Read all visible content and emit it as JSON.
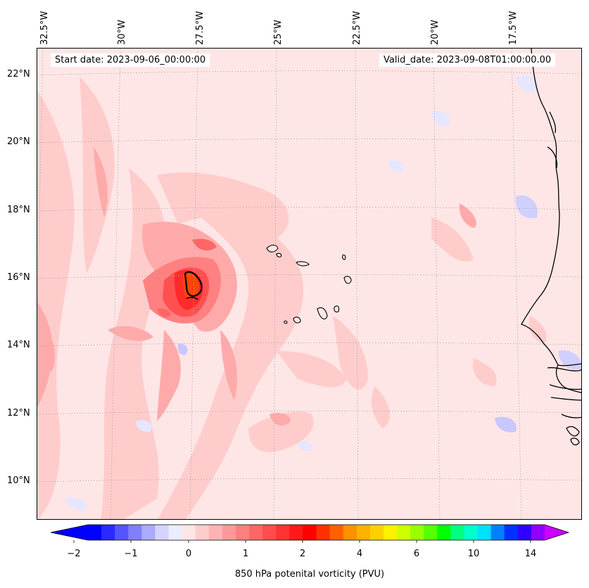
{
  "map": {
    "start_date_label": "Start date: 2023-09-06_00:00:00",
    "valid_date_label": "Valid_date: 2023-09-08T01:00:00.00",
    "longitude_labels": [
      "32.5°W",
      "30°W",
      "27.5°W",
      "25°W",
      "22.5°W",
      "20°W",
      "17.5°W"
    ],
    "latitude_labels": [
      "22°N",
      "20°N",
      "18°N",
      "16°N",
      "14°N",
      "12°N",
      "10°N"
    ],
    "field": "850 hPa potential vorticity",
    "region": "Eastern tropical Atlantic, Cabo Verde Islands and West African coast"
  },
  "colorbar": {
    "title": "850 hPa potenital vorticity (PVU)",
    "tick_labels": [
      "−2",
      "−1",
      "0",
      "1",
      "2",
      "4",
      "6",
      "10",
      "14"
    ],
    "colors": [
      "#0000ff",
      "#2a2aff",
      "#5555ff",
      "#7f7fff",
      "#aaaaff",
      "#d4d4ff",
      "#ececff",
      "#ffe6e6",
      "#ffcccc",
      "#ffb3b3",
      "#ff9999",
      "#ff7f7f",
      "#ff6666",
      "#ff4c4c",
      "#ff3333",
      "#ff1919",
      "#ff0000",
      "#ff3000",
      "#ff6000",
      "#ff9000",
      "#ffb000",
      "#ffd000",
      "#fff000",
      "#ccff00",
      "#99ff00",
      "#55ff00",
      "#00ff00",
      "#00ff80",
      "#00ffcc",
      "#00e0ff",
      "#0080ff",
      "#0030ff",
      "#3000ff",
      "#9000ff"
    ],
    "extend_low_color": "#0000ff",
    "extend_high_color": "#cc00ff"
  }
}
